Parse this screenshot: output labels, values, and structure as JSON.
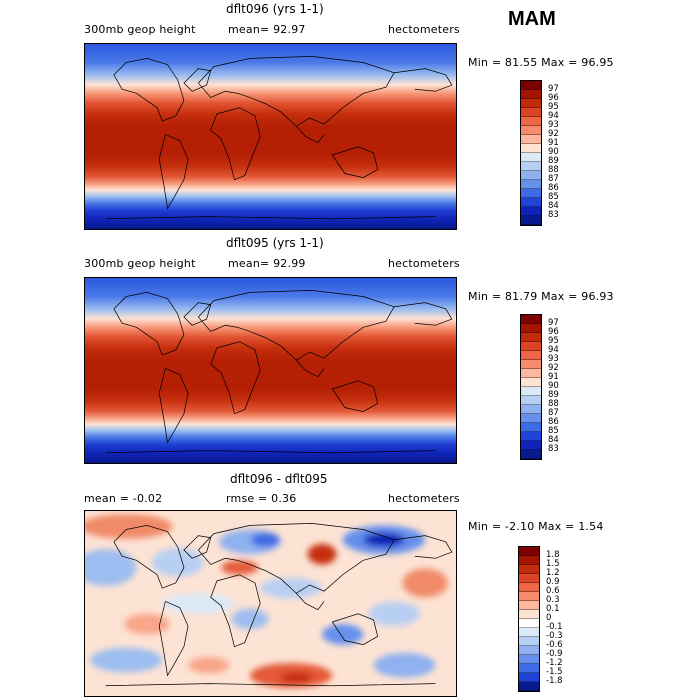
{
  "season": "MAM",
  "panels": [
    {
      "title": "dflt096 (yrs 1-1)",
      "left_label": "300mb geop height",
      "mid_label": "mean=  92.97",
      "right_label": "hectometers",
      "minmax": "Min =  81.55 Max =  96.95",
      "colorbar": {
        "labels": [
          "97",
          "96",
          "95",
          "94",
          "93",
          "92",
          "91",
          "90",
          "89",
          "88",
          "87",
          "86",
          "85",
          "84",
          "83"
        ],
        "colors": [
          "#7f0000",
          "#a31500",
          "#c22b0a",
          "#dc4426",
          "#ee6645",
          "#f78b6b",
          "#fcb79e",
          "#fde3d4",
          "#dce9f7",
          "#b7cff2",
          "#8fb1ef",
          "#6590ec",
          "#3d6ae6",
          "#2144d8",
          "#0f23b8",
          "#081a8c"
        ]
      }
    },
    {
      "title": "dflt095 (yrs 1-1)",
      "left_label": "300mb geop height",
      "mid_label": "mean=  92.99",
      "right_label": "hectometers",
      "minmax": "Min =  81.79 Max =  96.93",
      "colorbar": {
        "labels": [
          "97",
          "96",
          "95",
          "94",
          "93",
          "92",
          "91",
          "90",
          "89",
          "88",
          "87",
          "86",
          "85",
          "84",
          "83"
        ],
        "colors": [
          "#7f0000",
          "#a31500",
          "#c22b0a",
          "#dc4426",
          "#ee6645",
          "#f78b6b",
          "#fcb79e",
          "#fde3d4",
          "#dce9f7",
          "#b7cff2",
          "#8fb1ef",
          "#6590ec",
          "#3d6ae6",
          "#2144d8",
          "#0f23b8",
          "#081a8c"
        ]
      }
    },
    {
      "title": "dflt096 - dflt095",
      "left_label": "mean =   -0.02",
      "mid_label": "rmse =    0.36",
      "right_label": "hectometers",
      "minmax": "Min =  -2.10 Max =   1.54",
      "colorbar": {
        "labels": [
          "1.8",
          "1.5",
          "1.2",
          "0.9",
          "0.6",
          "0.3",
          "0.1",
          "0",
          "-0.1",
          "-0.3",
          "-0.6",
          "-0.9",
          "-1.2",
          "-1.5",
          "-1.8"
        ],
        "colors": [
          "#7f0000",
          "#a31500",
          "#c22b0a",
          "#dc4426",
          "#ee6645",
          "#f78b6b",
          "#fcb79e",
          "#fde3d4",
          "#ffffff",
          "#dce9f7",
          "#b7cff2",
          "#8fb1ef",
          "#6590ec",
          "#3d6ae6",
          "#2144d8",
          "#081a8c"
        ]
      }
    }
  ],
  "colors": {
    "deep_red": "#b02000",
    "deep_blue": "#081a8c",
    "land_outline": "#000000"
  }
}
